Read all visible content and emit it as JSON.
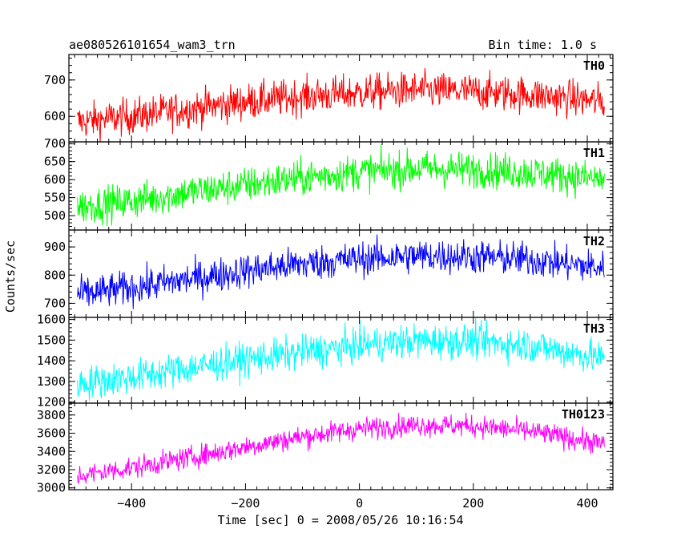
{
  "header": {
    "title": "ae080526101654_wam3_trn",
    "bin_time": "Bin time: 1.0 s"
  },
  "axes": {
    "xlabel": "Time [sec] 0 = 2008/05/26 10:16:54",
    "ylabel": "Counts/sec"
  },
  "chart_data": [
    {
      "type": "line",
      "series_label": "TH0",
      "color": "#ff0000",
      "xlim": [
        -510,
        445
      ],
      "ylim": [
        530,
        770
      ],
      "yticks": [
        600,
        700
      ],
      "t_start": -495,
      "t_end": 430,
      "trend": [
        {
          "t": -495,
          "mean": 585
        },
        {
          "t": -400,
          "mean": 600
        },
        {
          "t": -300,
          "mean": 620
        },
        {
          "t": -200,
          "mean": 640
        },
        {
          "t": -100,
          "mean": 655
        },
        {
          "t": 0,
          "mean": 665
        },
        {
          "t": 100,
          "mean": 672
        },
        {
          "t": 200,
          "mean": 668
        },
        {
          "t": 300,
          "mean": 660
        },
        {
          "t": 430,
          "mean": 640
        }
      ],
      "noise_amplitude": 45
    },
    {
      "type": "line",
      "series_label": "TH1",
      "color": "#00ff00",
      "xlim": [
        -510,
        445
      ],
      "ylim": [
        460,
        705
      ],
      "yticks": [
        500,
        550,
        600,
        650,
        700
      ],
      "t_start": -495,
      "t_end": 430,
      "trend": [
        {
          "t": -495,
          "mean": 525
        },
        {
          "t": -400,
          "mean": 540
        },
        {
          "t": -300,
          "mean": 565
        },
        {
          "t": -200,
          "mean": 585
        },
        {
          "t": -100,
          "mean": 605
        },
        {
          "t": 0,
          "mean": 622
        },
        {
          "t": 100,
          "mean": 630
        },
        {
          "t": 200,
          "mean": 628
        },
        {
          "t": 300,
          "mean": 620
        },
        {
          "t": 430,
          "mean": 600
        }
      ],
      "noise_amplitude": 45
    },
    {
      "type": "line",
      "series_label": "TH2",
      "color": "#0000ff",
      "xlim": [
        -510,
        445
      ],
      "ylim": [
        650,
        960
      ],
      "yticks": [
        700,
        800,
        900
      ],
      "t_start": -495,
      "t_end": 430,
      "trend": [
        {
          "t": -495,
          "mean": 730
        },
        {
          "t": -400,
          "mean": 755
        },
        {
          "t": -300,
          "mean": 785
        },
        {
          "t": -200,
          "mean": 815
        },
        {
          "t": -100,
          "mean": 840
        },
        {
          "t": 0,
          "mean": 858
        },
        {
          "t": 100,
          "mean": 868
        },
        {
          "t": 200,
          "mean": 866
        },
        {
          "t": 300,
          "mean": 855
        },
        {
          "t": 430,
          "mean": 825
        }
      ],
      "noise_amplitude": 55
    },
    {
      "type": "line",
      "series_label": "TH3",
      "color": "#00ffff",
      "xlim": [
        -510,
        445
      ],
      "ylim": [
        1195,
        1610
      ],
      "yticks": [
        1200,
        1300,
        1400,
        1500,
        1600
      ],
      "t_start": -495,
      "t_end": 430,
      "trend": [
        {
          "t": -495,
          "mean": 1290
        },
        {
          "t": -400,
          "mean": 1320
        },
        {
          "t": -300,
          "mean": 1365
        },
        {
          "t": -200,
          "mean": 1405
        },
        {
          "t": -100,
          "mean": 1440
        },
        {
          "t": 0,
          "mean": 1475
        },
        {
          "t": 100,
          "mean": 1495
        },
        {
          "t": 200,
          "mean": 1495
        },
        {
          "t": 300,
          "mean": 1475
        },
        {
          "t": 430,
          "mean": 1410
        }
      ],
      "noise_amplitude": 75
    },
    {
      "type": "line",
      "series_label": "TH0123",
      "color": "#ff00ff",
      "xlim": [
        -510,
        445
      ],
      "ylim": [
        2980,
        3930
      ],
      "yticks": [
        3000,
        3200,
        3400,
        3600,
        3800
      ],
      "t_start": -495,
      "t_end": 430,
      "trend": [
        {
          "t": -495,
          "mean": 3130
        },
        {
          "t": -400,
          "mean": 3220
        },
        {
          "t": -300,
          "mean": 3330
        },
        {
          "t": -200,
          "mean": 3450
        },
        {
          "t": -100,
          "mean": 3560
        },
        {
          "t": 0,
          "mean": 3650
        },
        {
          "t": 100,
          "mean": 3690
        },
        {
          "t": 200,
          "mean": 3680
        },
        {
          "t": 300,
          "mean": 3620
        },
        {
          "t": 430,
          "mean": 3480
        }
      ],
      "noise_amplitude": 110
    }
  ],
  "x_axis": {
    "ticks": [
      -400,
      -200,
      0,
      200,
      400
    ],
    "tick_labels": [
      "−400",
      "−200",
      "0",
      "200",
      "400"
    ]
  }
}
